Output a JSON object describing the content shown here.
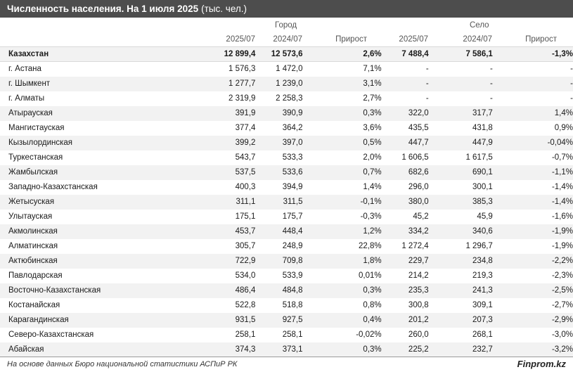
{
  "title": {
    "bold": "Численность населения. На 1 июля 2025",
    "normal": "(тыс. чел.)"
  },
  "groups": {
    "city": "Город",
    "village": "Село"
  },
  "columns": {
    "city_2025": "2025/07",
    "city_2024": "2024/07",
    "city_growth": "Прирост",
    "village_2025": "2025/07",
    "village_2024": "2024/07",
    "village_growth": "Прирост"
  },
  "rows": [
    {
      "name": "Казахстан",
      "c25": "12 899,4",
      "c24": "12 573,6",
      "cg": "2,6%",
      "v25": "7 488,4",
      "v24": "7 586,1",
      "vg": "-1,3%"
    },
    {
      "name": "г. Астана",
      "c25": "1 576,3",
      "c24": "1 472,0",
      "cg": "7,1%",
      "v25": "-",
      "v24": "-",
      "vg": "-"
    },
    {
      "name": "г. Шымкент",
      "c25": "1 277,7",
      "c24": "1 239,0",
      "cg": "3,1%",
      "v25": "-",
      "v24": "-",
      "vg": "-"
    },
    {
      "name": "г. Алматы",
      "c25": "2 319,9",
      "c24": "2 258,3",
      "cg": "2,7%",
      "v25": "-",
      "v24": "-",
      "vg": "-"
    },
    {
      "name": "Атырауская",
      "c25": "391,9",
      "c24": "390,9",
      "cg": "0,3%",
      "v25": "322,0",
      "v24": "317,7",
      "vg": "1,4%"
    },
    {
      "name": "Мангистауская",
      "c25": "377,4",
      "c24": "364,2",
      "cg": "3,6%",
      "v25": "435,5",
      "v24": "431,8",
      "vg": "0,9%"
    },
    {
      "name": "Кызылординская",
      "c25": "399,2",
      "c24": "397,0",
      "cg": "0,5%",
      "v25": "447,7",
      "v24": "447,9",
      "vg": "-0,04%"
    },
    {
      "name": "Туркестанская",
      "c25": "543,7",
      "c24": "533,3",
      "cg": "2,0%",
      "v25": "1 606,5",
      "v24": "1 617,5",
      "vg": "-0,7%"
    },
    {
      "name": "Жамбылская",
      "c25": "537,5",
      "c24": "533,6",
      "cg": "0,7%",
      "v25": "682,6",
      "v24": "690,1",
      "vg": "-1,1%"
    },
    {
      "name": "Западно-Казахстанская",
      "c25": "400,3",
      "c24": "394,9",
      "cg": "1,4%",
      "v25": "296,0",
      "v24": "300,1",
      "vg": "-1,4%"
    },
    {
      "name": "Жетысуская",
      "c25": "311,1",
      "c24": "311,5",
      "cg": "-0,1%",
      "v25": "380,0",
      "v24": "385,3",
      "vg": "-1,4%"
    },
    {
      "name": "Улытауская",
      "c25": "175,1",
      "c24": "175,7",
      "cg": "-0,3%",
      "v25": "45,2",
      "v24": "45,9",
      "vg": "-1,6%"
    },
    {
      "name": "Акмолинская",
      "c25": "453,7",
      "c24": "448,4",
      "cg": "1,2%",
      "v25": "334,2",
      "v24": "340,6",
      "vg": "-1,9%"
    },
    {
      "name": "Алматинская",
      "c25": "305,7",
      "c24": "248,9",
      "cg": "22,8%",
      "v25": "1 272,4",
      "v24": "1 296,7",
      "vg": "-1,9%"
    },
    {
      "name": "Актюбинская",
      "c25": "722,9",
      "c24": "709,8",
      "cg": "1,8%",
      "v25": "229,7",
      "v24": "234,8",
      "vg": "-2,2%"
    },
    {
      "name": "Павлодарская",
      "c25": "534,0",
      "c24": "533,9",
      "cg": "0,01%",
      "v25": "214,2",
      "v24": "219,3",
      "vg": "-2,3%"
    },
    {
      "name": "Восточно-Казахстанская",
      "c25": "486,4",
      "c24": "484,8",
      "cg": "0,3%",
      "v25": "235,3",
      "v24": "241,3",
      "vg": "-2,5%"
    },
    {
      "name": "Костанайская",
      "c25": "522,8",
      "c24": "518,8",
      "cg": "0,8%",
      "v25": "300,8",
      "v24": "309,1",
      "vg": "-2,7%"
    },
    {
      "name": "Карагандинская",
      "c25": "931,5",
      "c24": "927,5",
      "cg": "0,4%",
      "v25": "201,2",
      "v24": "207,3",
      "vg": "-2,9%"
    },
    {
      "name": "Северо-Казахстанская",
      "c25": "258,1",
      "c24": "258,1",
      "cg": "-0,02%",
      "v25": "260,0",
      "v24": "268,1",
      "vg": "-3,0%"
    },
    {
      "name": "Абайская",
      "c25": "374,3",
      "c24": "373,1",
      "cg": "0,3%",
      "v25": "225,2",
      "v24": "232,7",
      "vg": "-3,2%"
    }
  ],
  "footer": {
    "source": "На основе данных Бюро национальной статистики АСПиР РК",
    "brand": "Finprom.kz"
  }
}
